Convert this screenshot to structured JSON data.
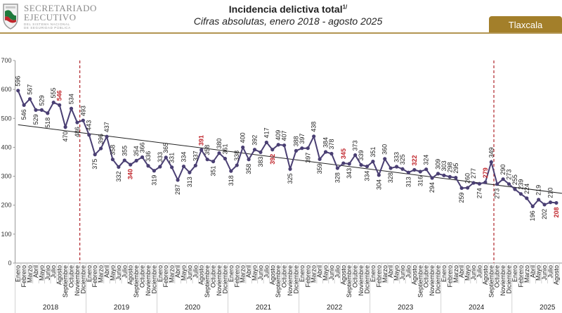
{
  "logo": {
    "line1": "SECRETARIADO",
    "line2": "EJECUTIVO",
    "line3": "DEL SISTEMA NACIONAL",
    "line4": "DE SEGURIDAD PÚBLICA"
  },
  "header": {
    "title": "Incidencia delictiva total",
    "title_sup": "1/",
    "subtitle": "Cifras absolutas, enero 2018 - agosto 2025",
    "state_badge": "Tlaxcala"
  },
  "colors": {
    "line": "#4a3f73",
    "highlight": "#c0262c",
    "gold": "#a37f2a",
    "trend": "#222222",
    "dashed": "#b0242a"
  },
  "chart_data": {
    "type": "line",
    "title": "Incidencia delictiva total",
    "subtitle": "Cifras absolutas, enero 2018 - agosto 2025",
    "ylim": [
      0,
      700
    ],
    "yticks": [
      0,
      100,
      200,
      300,
      400,
      500,
      600,
      700
    ],
    "grid": false,
    "months": [
      "Enero",
      "Febrero",
      "Marzo",
      "Abril",
      "Mayo",
      "Junio",
      "Julio",
      "Agosto",
      "Septiembre",
      "Octubre",
      "Noviembre",
      "Diciembre"
    ],
    "years": [
      "2018",
      "2019",
      "2020",
      "2021",
      "2022",
      "2023",
      "2024",
      "2025"
    ],
    "values": [
      596,
      546,
      567,
      529,
      529,
      518,
      555,
      546,
      470,
      534,
      486,
      493,
      443,
      375,
      396,
      437,
      358,
      332,
      355,
      340,
      354,
      366,
      336,
      319,
      333,
      365,
      331,
      287,
      334,
      313,
      337,
      391,
      358,
      351,
      380,
      361,
      318,
      338,
      400,
      358,
      392,
      383,
      417,
      392,
      409,
      407,
      325,
      388,
      397,
      397,
      438,
      359,
      384,
      378,
      328,
      345,
      343,
      373,
      339,
      334,
      351,
      304,
      360,
      328,
      333,
      325,
      313,
      322,
      316,
      324,
      294,
      309,
      303,
      298,
      295,
      259,
      260,
      277,
      274,
      279,
      349,
      273,
      290,
      273,
      255,
      239,
      224,
      196,
      219,
      202,
      210,
      208
    ],
    "highlighted_month": "Agosto",
    "trend_line": {
      "start": 478,
      "end": 241
    },
    "vertical_markers": [
      {
        "after": "Noviembre 2018"
      },
      {
        "after": "Septiembre 2024"
      }
    ]
  }
}
